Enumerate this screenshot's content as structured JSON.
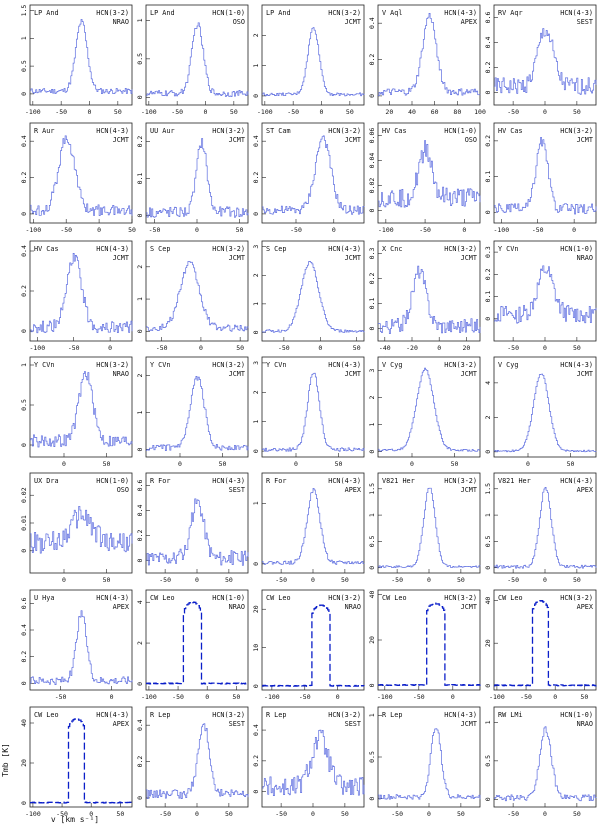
{
  "chart_data": [
    {
      "type": "line",
      "source": "LP And",
      "line": "HCN(3-2)",
      "telescope": "NRAO",
      "xticks": [
        -100,
        -50,
        0,
        50
      ],
      "yticks": [
        0,
        0.5,
        1,
        1.5
      ],
      "xlim": [
        -105,
        75
      ],
      "ylim": [
        -0.2,
        1.6
      ],
      "peak": 1.25,
      "center": -15,
      "width": 10,
      "base": 0.05,
      "noise": 0.05
    },
    {
      "type": "line",
      "source": "LP And",
      "line": "HCN(1-0)",
      "telescope": "OSO",
      "xticks": [
        -100,
        -50,
        0,
        50
      ],
      "yticks": [
        0,
        0.5,
        1
      ],
      "xlim": [
        -105,
        75
      ],
      "ylim": [
        -0.1,
        1.2
      ],
      "peak": 0.9,
      "center": -15,
      "width": 10,
      "base": 0.05,
      "noise": 0.04
    },
    {
      "type": "line",
      "source": "LP And",
      "line": "HCN(3-2)",
      "telescope": "JCMT",
      "xticks": [
        -100,
        -50,
        0,
        50
      ],
      "yticks": [
        0,
        1,
        2
      ],
      "xlim": [
        -105,
        75
      ],
      "ylim": [
        -0.3,
        3
      ],
      "peak": 2.2,
      "center": -15,
      "width": 10,
      "base": 0.05,
      "noise": 0.05
    },
    {
      "type": "line",
      "source": "V Aql",
      "line": "HCN(4-3)",
      "telescope": "APEX",
      "xticks": [
        20,
        40,
        60,
        80,
        100
      ],
      "yticks": [
        0,
        0.2,
        0.4
      ],
      "xlim": [
        10,
        100
      ],
      "ylim": [
        -0.05,
        0.5
      ],
      "peak": 0.42,
      "center": 55,
      "width": 6,
      "base": 0.02,
      "noise": 0.02
    },
    {
      "type": "line",
      "source": "RV Aqr",
      "line": "HCN(4-3)",
      "telescope": "SEST",
      "xticks": [
        -50,
        0,
        50
      ],
      "yticks": [
        0,
        0.2,
        0.4,
        0.6
      ],
      "xlim": [
        -80,
        80
      ],
      "ylim": [
        -0.1,
        0.7
      ],
      "peak": 0.45,
      "center": 0,
      "width": 12,
      "base": 0.05,
      "noise": 0.07
    },
    {
      "type": "line",
      "source": "R Aur",
      "line": "HCN(4-3)",
      "telescope": "JCMT",
      "xticks": [
        -100,
        -50,
        0,
        50
      ],
      "yticks": [
        0,
        0.2,
        0.4
      ],
      "xlim": [
        -105,
        50
      ],
      "ylim": [
        -0.05,
        0.5
      ],
      "peak": 0.4,
      "center": -50,
      "width": 12,
      "base": 0.02,
      "noise": 0.03
    },
    {
      "type": "line",
      "source": "UU Aur",
      "line": "HCN(3-2)",
      "telescope": "JCMT",
      "xticks": [
        -50,
        0,
        50
      ],
      "yticks": [
        0,
        0.1,
        0.2
      ],
      "xlim": [
        -60,
        60
      ],
      "ylim": [
        -0.02,
        0.25
      ],
      "peak": 0.19,
      "center": 5,
      "width": 6,
      "base": 0.01,
      "noise": 0.015
    },
    {
      "type": "line",
      "source": "ST Cam",
      "line": "HCN(3-2)",
      "telescope": "JCMT",
      "xticks": [
        -50,
        0
      ],
      "yticks": [
        0,
        0.2,
        0.4
      ],
      "xlim": [
        -95,
        40
      ],
      "ylim": [
        -0.05,
        0.5
      ],
      "peak": 0.4,
      "center": -15,
      "width": 10,
      "base": 0.02,
      "noise": 0.025
    },
    {
      "type": "line",
      "source": "HV Cas",
      "line": "HCN(1-0)",
      "telescope": "OSO",
      "xticks": [
        -100,
        -50,
        0
      ],
      "yticks": [
        0,
        0.02,
        0.04,
        0.06
      ],
      "xlim": [
        -110,
        20
      ],
      "ylim": [
        -0.01,
        0.07
      ],
      "peak": 0.04,
      "center": -50,
      "width": 8,
      "base": 0.01,
      "noise": 0.008
    },
    {
      "type": "line",
      "source": "HV Cas",
      "line": "HCN(3-2)",
      "telescope": "JCMT",
      "xticks": [
        -100,
        -50,
        0
      ],
      "yticks": [
        0,
        0.1,
        0.2
      ],
      "xlim": [
        -110,
        30
      ],
      "ylim": [
        -0.03,
        0.25
      ],
      "peak": 0.19,
      "center": -45,
      "width": 8,
      "base": 0.01,
      "noise": 0.015
    },
    {
      "type": "line",
      "source": "HV Cas",
      "line": "HCN(4-3)",
      "telescope": "JCMT",
      "xticks": [
        -100,
        -50,
        0
      ],
      "yticks": [
        0,
        0.2,
        0.4
      ],
      "xlim": [
        -110,
        30
      ],
      "ylim": [
        -0.05,
        0.45
      ],
      "peak": 0.35,
      "center": -50,
      "width": 10,
      "base": 0.02,
      "noise": 0.03
    },
    {
      "type": "line",
      "source": "S Cep",
      "line": "HCN(3-2)",
      "telescope": "JCMT",
      "xticks": [
        -50,
        0,
        50
      ],
      "yticks": [
        0,
        1,
        2
      ],
      "xlim": [
        -70,
        60
      ],
      "ylim": [
        -0.3,
        2.8
      ],
      "peak": 2.0,
      "center": -15,
      "width": 12,
      "base": 0.1,
      "noise": 0.1
    },
    {
      "type": "line",
      "source": "S Cep",
      "line": "HCN(4-3)",
      "telescope": "JCMT",
      "xticks": [
        -50,
        0,
        50
      ],
      "yticks": [
        0,
        1,
        2,
        3
      ],
      "xlim": [
        -80,
        60
      ],
      "ylim": [
        -0.3,
        3.2
      ],
      "peak": 2.4,
      "center": -15,
      "width": 12,
      "base": 0.05,
      "noise": 0.05
    },
    {
      "type": "line",
      "source": "X Cnc",
      "line": "HCN(3-2)",
      "telescope": "JCMT",
      "xticks": [
        -40,
        -20,
        0,
        20
      ],
      "yticks": [
        0,
        0.1,
        0.2,
        0.3
      ],
      "xlim": [
        -45,
        30
      ],
      "ylim": [
        -0.05,
        0.35
      ],
      "peak": 0.22,
      "center": -15,
      "width": 5,
      "base": 0.01,
      "noise": 0.03
    },
    {
      "type": "line",
      "source": "Y CVn",
      "line": "HCN(1-0)",
      "telescope": "NRAO",
      "xticks": [
        -50,
        0,
        50
      ],
      "yticks": [
        0,
        0.1,
        0.2,
        0.3
      ],
      "xlim": [
        -80,
        80
      ],
      "ylim": [
        -0.1,
        0.35
      ],
      "peak": 0.2,
      "center": 0,
      "width": 12,
      "base": 0.02,
      "noise": 0.04
    },
    {
      "type": "line",
      "source": "Y CVn",
      "line": "HCN(3-2)",
      "telescope": "NRAO",
      "xticks": [
        0,
        50
      ],
      "yticks": [
        0,
        0.5,
        1
      ],
      "xlim": [
        -40,
        80
      ],
      "ylim": [
        -0.15,
        1.1
      ],
      "peak": 0.85,
      "center": 25,
      "width": 8,
      "base": 0.05,
      "noise": 0.08
    },
    {
      "type": "line",
      "source": "Y CVn",
      "line": "HCN(3-2)",
      "telescope": "JCMT",
      "xticks": [
        0,
        50
      ],
      "yticks": [
        0,
        1,
        2
      ],
      "xlim": [
        -40,
        80
      ],
      "ylim": [
        -0.2,
        2.5
      ],
      "peak": 1.9,
      "center": 20,
      "width": 8,
      "base": 0.05,
      "noise": 0.08
    },
    {
      "type": "line",
      "source": "Y CVn",
      "line": "HCN(4-3)",
      "telescope": "JCMT",
      "xticks": [
        0,
        50
      ],
      "yticks": [
        0,
        1,
        2,
        3
      ],
      "xlim": [
        -40,
        80
      ],
      "ylim": [
        -0.2,
        3.2
      ],
      "peak": 2.6,
      "center": 20,
      "width": 7,
      "base": 0.05,
      "noise": 0.06
    },
    {
      "type": "line",
      "source": "V Cyg",
      "line": "HCN(3-2)",
      "telescope": "JCMT",
      "xticks": [
        0,
        50
      ],
      "yticks": [
        0,
        1,
        2,
        3
      ],
      "xlim": [
        -40,
        80
      ],
      "ylim": [
        -0.2,
        3.5
      ],
      "peak": 3.0,
      "center": 15,
      "width": 10,
      "base": 0.05,
      "noise": 0.04
    },
    {
      "type": "line",
      "source": "V Cyg",
      "line": "HCN(4-3)",
      "telescope": "JCMT",
      "xticks": [
        0,
        50
      ],
      "yticks": [
        0,
        2,
        4
      ],
      "xlim": [
        -40,
        80
      ],
      "ylim": [
        -0.3,
        5.5
      ],
      "peak": 4.5,
      "center": 15,
      "width": 9,
      "base": 0.05,
      "noise": 0.05
    },
    {
      "type": "line",
      "source": "UX Dra",
      "line": "HCN(1-0)",
      "telescope": "OSO",
      "xticks": [
        0,
        50
      ],
      "yticks": [
        0,
        0.01,
        0.02
      ],
      "xlim": [
        -40,
        80
      ],
      "ylim": [
        -0.008,
        0.028
      ],
      "peak": 0.01,
      "center": 20,
      "width": 12,
      "base": 0.003,
      "noise": 0.004
    },
    {
      "type": "line",
      "source": "R For",
      "line": "HCN(4-3)",
      "telescope": "SEST",
      "xticks": [
        -50,
        0,
        50
      ],
      "yticks": [
        0,
        0.2,
        0.4,
        0.6
      ],
      "xlim": [
        -80,
        80
      ],
      "ylim": [
        -0.1,
        0.7
      ],
      "peak": 0.45,
      "center": 0,
      "width": 10,
      "base": 0.02,
      "noise": 0.06
    },
    {
      "type": "line",
      "source": "R For",
      "line": "HCN(4-3)",
      "telescope": "APEX",
      "xticks": [
        -50,
        0,
        50
      ],
      "yticks": [
        0,
        1
      ],
      "xlim": [
        -80,
        80
      ],
      "ylim": [
        -0.15,
        1.5
      ],
      "peak": 1.2,
      "center": 0,
      "width": 10,
      "base": 0.02,
      "noise": 0.03
    },
    {
      "type": "line",
      "source": "V821 Her",
      "line": "HCN(3-2)",
      "telescope": "JCMT",
      "xticks": [
        -50,
        0,
        50
      ],
      "yticks": [
        0,
        0.5,
        1,
        1.5
      ],
      "xlim": [
        -80,
        80
      ],
      "ylim": [
        -0.1,
        1.8
      ],
      "peak": 1.5,
      "center": 0,
      "width": 9,
      "base": 0.02,
      "noise": 0.02
    },
    {
      "type": "line",
      "source": "V821 Her",
      "line": "HCN(4-3)",
      "telescope": "APEX",
      "xticks": [
        -50,
        0,
        50
      ],
      "yticks": [
        0,
        0.5,
        1,
        1.5
      ],
      "xlim": [
        -80,
        80
      ],
      "ylim": [
        -0.1,
        1.8
      ],
      "peak": 1.5,
      "center": 0,
      "width": 9,
      "base": 0.02,
      "noise": 0.03
    },
    {
      "type": "line",
      "source": "U Hya",
      "line": "HCN(4-3)",
      "telescope": "APEX",
      "xticks": [
        -50,
        0
      ],
      "yticks": [
        0,
        0.2,
        0.4,
        0.6
      ],
      "xlim": [
        -80,
        20
      ],
      "ylim": [
        -0.05,
        0.7
      ],
      "peak": 0.5,
      "center": -30,
      "width": 5,
      "base": 0.02,
      "noise": 0.03
    },
    {
      "type": "line",
      "source": "CW Leo",
      "line": "HCN(1-0)",
      "telescope": "NRAO",
      "xticks": [
        -100,
        -50,
        0,
        50
      ],
      "yticks": [
        0,
        2,
        4
      ],
      "xlim": [
        -105,
        70
      ],
      "ylim": [
        -0.3,
        4.6
      ],
      "peak": 4.0,
      "center": -26,
      "width": 15,
      "base": 0.02,
      "noise": 0.02,
      "flat": true
    },
    {
      "type": "line",
      "source": "CW Leo",
      "line": "HCN(3-2)",
      "telescope": "NRAO",
      "xticks": [
        -100,
        -50,
        0
      ],
      "yticks": [
        0,
        10,
        20
      ],
      "xlim": [
        -115,
        40
      ],
      "ylim": [
        -1,
        25
      ],
      "peak": 21,
      "center": -26,
      "width": 14,
      "base": 0.1,
      "noise": 0.1,
      "flat": true
    },
    {
      "type": "line",
      "source": "CW Leo",
      "line": "HCN(3-2)",
      "telescope": "JCMT",
      "xticks": [
        -100,
        -50,
        0
      ],
      "yticks": [
        0,
        20,
        40
      ],
      "xlim": [
        -110,
        40
      ],
      "ylim": [
        -2,
        42
      ],
      "peak": 36,
      "center": -26,
      "width": 14,
      "base": 0.2,
      "noise": 0.2,
      "flat": true
    },
    {
      "type": "line",
      "source": "CW Leo",
      "line": "HCN(3-2)",
      "telescope": "APEX",
      "xticks": [
        -100,
        -50,
        0,
        50
      ],
      "yticks": [
        0,
        20,
        40
      ],
      "xlim": [
        -105,
        70
      ],
      "ylim": [
        -2,
        45
      ],
      "peak": 40,
      "center": -26,
      "width": 14,
      "base": 0.2,
      "noise": 0.2,
      "flat": true
    },
    {
      "type": "line",
      "source": "CW Leo",
      "line": "HCN(4-3)",
      "telescope": "APEX",
      "xticks": [
        -100,
        -50,
        0,
        50
      ],
      "yticks": [
        0,
        20,
        40
      ],
      "xlim": [
        -105,
        70
      ],
      "ylim": [
        -2,
        48
      ],
      "peak": 42,
      "center": -26,
      "width": 14,
      "base": 0.2,
      "noise": 0.2,
      "flat": true
    },
    {
      "type": "line",
      "source": "R Lep",
      "line": "HCN(3-2)",
      "telescope": "SEST",
      "xticks": [
        -50,
        0,
        50
      ],
      "yticks": [
        0,
        0.2,
        0.4
      ],
      "xlim": [
        -80,
        80
      ],
      "ylim": [
        -0.05,
        0.5
      ],
      "peak": 0.38,
      "center": 10,
      "width": 9,
      "base": 0.02,
      "noise": 0.025
    },
    {
      "type": "line",
      "source": "R Lep",
      "line": "HCN(3-2)",
      "telescope": "SEST",
      "xticks": [
        -50,
        0,
        50
      ],
      "yticks": [
        0,
        0.2,
        0.4
      ],
      "xlim": [
        -80,
        80
      ],
      "ylim": [
        -0.1,
        0.55
      ],
      "peak": 0.32,
      "center": 10,
      "width": 13,
      "base": 0.03,
      "noise": 0.07
    },
    {
      "type": "line",
      "source": "R Lep",
      "line": "HCN(4-3)",
      "telescope": "JCMT",
      "xticks": [
        -50,
        0,
        50
      ],
      "yticks": [
        0,
        0.5,
        1
      ],
      "xlim": [
        -80,
        80
      ],
      "ylim": [
        -0.1,
        1.1
      ],
      "peak": 0.85,
      "center": 10,
      "width": 8,
      "base": 0.02,
      "noise": 0.03
    },
    {
      "type": "line",
      "source": "RW LMi",
      "line": "HCN(1-0)",
      "telescope": "NRAO",
      "xticks": [
        -50,
        0,
        50
      ],
      "yticks": [
        0,
        0.5,
        1
      ],
      "xlim": [
        -80,
        80
      ],
      "ylim": [
        -0.1,
        1.2
      ],
      "peak": 0.9,
      "center": 0,
      "width": 9,
      "base": 0.02,
      "noise": 0.04
    }
  ],
  "axes": {
    "xlabel": "v [km s⁻¹]",
    "ylabel": "Tmb [K]"
  }
}
